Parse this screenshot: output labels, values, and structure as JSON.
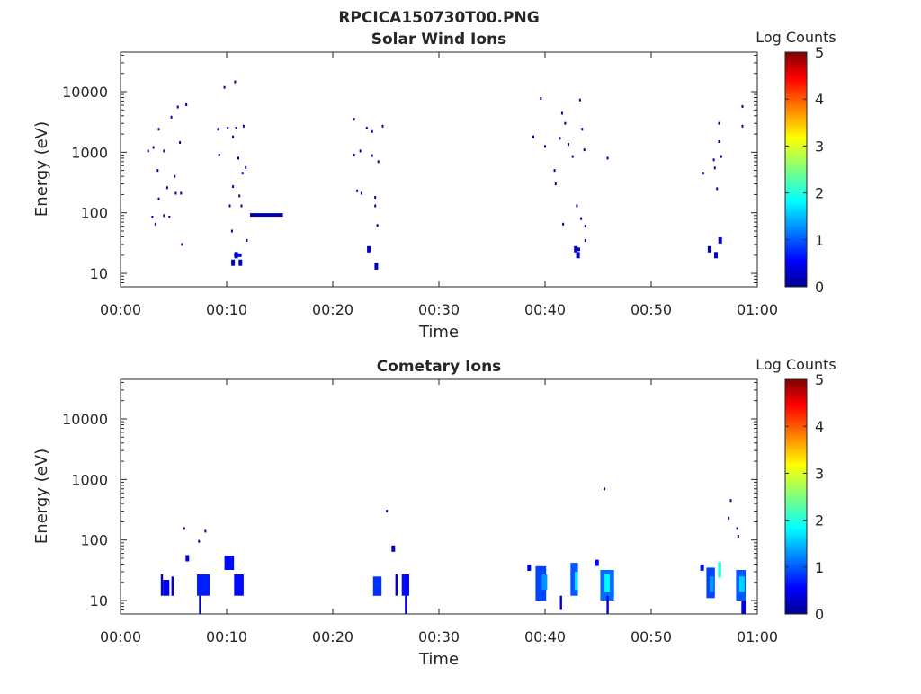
{
  "figure_title": "RPCICA150730T00.PNG",
  "colorbar": {
    "label": "Log Counts",
    "ticks": [
      0,
      1,
      2,
      3,
      4,
      5
    ],
    "range": [
      0,
      5
    ],
    "colormap": "jet"
  },
  "chart_data": [
    {
      "type": "heatmap",
      "title": "Solar Wind Ions",
      "xlabel": "Time",
      "ylabel": "Energy (eV)",
      "xlim_minutes": [
        0,
        60
      ],
      "x_ticks": [
        "00:00",
        "00:10",
        "00:20",
        "00:30",
        "00:40",
        "00:50",
        "01:00"
      ],
      "y_scale": "log",
      "ylim": [
        6,
        45000
      ],
      "y_ticks": [
        "10",
        "100",
        "1000",
        "10000"
      ],
      "grid": false,
      "colorbar_label": "Log Counts",
      "points": [
        {
          "t": 2.6,
          "e": 1050,
          "v": 0.2
        },
        {
          "t": 3.0,
          "e": 85,
          "v": 0.2
        },
        {
          "t": 3.1,
          "e": 1200,
          "v": 0.2
        },
        {
          "t": 3.3,
          "e": 65,
          "v": 0.2
        },
        {
          "t": 3.5,
          "e": 500,
          "v": 0.2
        },
        {
          "t": 3.6,
          "e": 170,
          "v": 0.2
        },
        {
          "t": 3.6,
          "e": 2400,
          "v": 0.2
        },
        {
          "t": 4.1,
          "e": 1050,
          "v": 0.2
        },
        {
          "t": 4.1,
          "e": 90,
          "v": 0.2
        },
        {
          "t": 4.4,
          "e": 260,
          "v": 0.2
        },
        {
          "t": 4.6,
          "e": 85,
          "v": 0.2
        },
        {
          "t": 4.8,
          "e": 3800,
          "v": 0.2
        },
        {
          "t": 5.1,
          "e": 400,
          "v": 0.2
        },
        {
          "t": 5.2,
          "e": 210,
          "v": 0.2
        },
        {
          "t": 5.4,
          "e": 5600,
          "v": 0.2
        },
        {
          "t": 5.6,
          "e": 1450,
          "v": 0.2
        },
        {
          "t": 5.7,
          "e": 210,
          "v": 0.2
        },
        {
          "t": 5.8,
          "e": 30,
          "v": 0.2
        },
        {
          "t": 6.2,
          "e": 6100,
          "v": 0.2
        },
        {
          "t": 9.2,
          "e": 2400,
          "v": 0.2
        },
        {
          "t": 9.3,
          "e": 900,
          "v": 0.2
        },
        {
          "t": 9.8,
          "e": 11800,
          "v": 0.2
        },
        {
          "t": 10.1,
          "e": 2500,
          "v": 0.2
        },
        {
          "t": 10.3,
          "e": 130,
          "v": 0.2
        },
        {
          "t": 10.5,
          "e": 50,
          "v": 0.2
        },
        {
          "t": 10.6,
          "e": 1800,
          "v": 0.2
        },
        {
          "t": 10.6,
          "e": 270,
          "v": 0.2
        },
        {
          "t": 10.6,
          "e": 15,
          "v": 0.3
        },
        {
          "t": 10.8,
          "e": 14500,
          "v": 0.2
        },
        {
          "t": 10.9,
          "e": 2500,
          "v": 0.2
        },
        {
          "t": 10.9,
          "e": 20,
          "v": 0.3
        },
        {
          "t": 11.1,
          "e": 800,
          "v": 0.2
        },
        {
          "t": 11.2,
          "e": 190,
          "v": 0.2
        },
        {
          "t": 11.3,
          "e": 15,
          "v": 0.3
        },
        {
          "t": 11.4,
          "e": 130,
          "v": 0.2
        },
        {
          "t": 11.5,
          "e": 450,
          "v": 0.2
        },
        {
          "t": 11.6,
          "e": 2700,
          "v": 0.2
        },
        {
          "t": 11.8,
          "e": 560,
          "v": 0.2
        },
        {
          "t": 11.9,
          "e": 35,
          "v": 0.2
        },
        {
          "t": 22.0,
          "e": 3500,
          "v": 0.2
        },
        {
          "t": 22.0,
          "e": 900,
          "v": 0.2
        },
        {
          "t": 22.3,
          "e": 230,
          "v": 0.2
        },
        {
          "t": 22.6,
          "e": 1050,
          "v": 0.2
        },
        {
          "t": 22.7,
          "e": 210,
          "v": 0.2
        },
        {
          "t": 23.2,
          "e": 2500,
          "v": 0.2
        },
        {
          "t": 23.4,
          "e": 25,
          "v": 0.3
        },
        {
          "t": 23.7,
          "e": 880,
          "v": 0.2
        },
        {
          "t": 23.7,
          "e": 2200,
          "v": 0.2
        },
        {
          "t": 24.0,
          "e": 180,
          "v": 0.2
        },
        {
          "t": 24.0,
          "e": 130,
          "v": 0.2
        },
        {
          "t": 24.1,
          "e": 13,
          "v": 0.3
        },
        {
          "t": 24.2,
          "e": 62,
          "v": 0.2
        },
        {
          "t": 24.3,
          "e": 700,
          "v": 0.2
        },
        {
          "t": 24.7,
          "e": 2700,
          "v": 0.2
        },
        {
          "t": 38.9,
          "e": 1800,
          "v": 0.2
        },
        {
          "t": 39.6,
          "e": 7700,
          "v": 0.2
        },
        {
          "t": 40.0,
          "e": 1250,
          "v": 0.2
        },
        {
          "t": 40.9,
          "e": 500,
          "v": 0.2
        },
        {
          "t": 41.0,
          "e": 300,
          "v": 0.2
        },
        {
          "t": 41.4,
          "e": 1700,
          "v": 0.2
        },
        {
          "t": 41.6,
          "e": 4400,
          "v": 0.2
        },
        {
          "t": 41.7,
          "e": 65,
          "v": 0.2
        },
        {
          "t": 41.9,
          "e": 3000,
          "v": 0.2
        },
        {
          "t": 42.2,
          "e": 1350,
          "v": 0.2
        },
        {
          "t": 42.6,
          "e": 850,
          "v": 0.2
        },
        {
          "t": 42.9,
          "e": 25,
          "v": 0.3
        },
        {
          "t": 43.0,
          "e": 130,
          "v": 0.2
        },
        {
          "t": 43.1,
          "e": 20,
          "v": 0.3
        },
        {
          "t": 43.3,
          "e": 7300,
          "v": 0.2
        },
        {
          "t": 43.4,
          "e": 80,
          "v": 0.2
        },
        {
          "t": 43.5,
          "e": 2400,
          "v": 0.2
        },
        {
          "t": 43.7,
          "e": 1100,
          "v": 0.2
        },
        {
          "t": 43.8,
          "e": 60,
          "v": 0.2
        },
        {
          "t": 43.8,
          "e": 35,
          "v": 0.2
        },
        {
          "t": 45.9,
          "e": 800,
          "v": 0.2
        },
        {
          "t": 54.9,
          "e": 450,
          "v": 0.2
        },
        {
          "t": 55.5,
          "e": 25,
          "v": 0.3
        },
        {
          "t": 55.9,
          "e": 750,
          "v": 0.2
        },
        {
          "t": 56.0,
          "e": 550,
          "v": 0.2
        },
        {
          "t": 56.1,
          "e": 20,
          "v": 0.3
        },
        {
          "t": 56.2,
          "e": 250,
          "v": 0.2
        },
        {
          "t": 56.4,
          "e": 3000,
          "v": 0.2
        },
        {
          "t": 56.4,
          "e": 1500,
          "v": 0.2
        },
        {
          "t": 56.5,
          "e": 35,
          "v": 0.3
        },
        {
          "t": 56.6,
          "e": 850,
          "v": 0.2
        },
        {
          "t": 58.6,
          "e": 5700,
          "v": 0.2
        },
        {
          "t": 58.6,
          "e": 2700,
          "v": 0.2
        }
      ],
      "streaks": [
        {
          "t0": 12.2,
          "t1": 15.3,
          "e": 92,
          "v": 0.2
        },
        {
          "t0": 10.7,
          "t1": 11.4,
          "e": 20,
          "v": 0.3
        },
        {
          "t0": 42.8,
          "t1": 43.3,
          "e": 25,
          "v": 0.3
        }
      ]
    },
    {
      "type": "heatmap",
      "title": "Cometary Ions",
      "xlabel": "Time",
      "ylabel": "Energy (eV)",
      "xlim_minutes": [
        0,
        60
      ],
      "x_ticks": [
        "00:00",
        "00:10",
        "00:20",
        "00:30",
        "00:40",
        "00:50",
        "01:00"
      ],
      "y_scale": "log",
      "ylim": [
        6,
        45000
      ],
      "y_ticks": [
        "10",
        "100",
        "1000",
        "10000"
      ],
      "grid": false,
      "colorbar_label": "Log Counts",
      "points": [
        {
          "t": 6.0,
          "e": 155,
          "v": 0.2
        },
        {
          "t": 6.3,
          "e": 50,
          "v": 0.4
        },
        {
          "t": 7.4,
          "e": 95,
          "v": 0.2
        },
        {
          "t": 8.0,
          "e": 140,
          "v": 0.2
        },
        {
          "t": 25.1,
          "e": 300,
          "v": 0.2
        },
        {
          "t": 25.7,
          "e": 72,
          "v": 0.3
        },
        {
          "t": 38.5,
          "e": 35,
          "v": 0.3
        },
        {
          "t": 44.9,
          "e": 42,
          "v": 0.6
        },
        {
          "t": 45.6,
          "e": 700,
          "v": 0.2
        },
        {
          "t": 54.8,
          "e": 35,
          "v": 0.4
        },
        {
          "t": 57.5,
          "e": 450,
          "v": 0.2
        },
        {
          "t": 57.3,
          "e": 230,
          "v": 0.2
        },
        {
          "t": 58.1,
          "e": 155,
          "v": 0.2
        },
        {
          "t": 58.2,
          "e": 115,
          "v": 0.2
        }
      ],
      "columns": [
        {
          "t0": 3.8,
          "t1": 4.0,
          "e0": 12,
          "e1": 27,
          "v": 0.3
        },
        {
          "t0": 4.0,
          "t1": 4.6,
          "e0": 12,
          "e1": 22,
          "v": 0.5
        },
        {
          "t0": 4.8,
          "t1": 5.0,
          "e0": 12,
          "e1": 25,
          "v": 0.3
        },
        {
          "t0": 7.2,
          "t1": 8.4,
          "e0": 12,
          "e1": 27,
          "v": 0.7
        },
        {
          "t0": 7.4,
          "t1": 7.6,
          "e0": 6,
          "e1": 12,
          "v": 0.3
        },
        {
          "t0": 9.8,
          "t1": 10.7,
          "e0": 32,
          "e1": 55,
          "v": 0.6
        },
        {
          "t0": 10.7,
          "t1": 11.6,
          "e0": 12,
          "e1": 27,
          "v": 0.6
        },
        {
          "t0": 23.8,
          "t1": 24.6,
          "e0": 12,
          "e1": 25,
          "v": 0.8
        },
        {
          "t0": 25.9,
          "t1": 26.1,
          "e0": 12,
          "e1": 27,
          "v": 0.3
        },
        {
          "t0": 26.5,
          "t1": 27.2,
          "e0": 12,
          "e1": 27,
          "v": 0.6
        },
        {
          "t0": 26.8,
          "t1": 27.0,
          "e0": 6,
          "e1": 12,
          "v": 0.3
        },
        {
          "t0": 39.1,
          "t1": 40.1,
          "e0": 10,
          "e1": 37,
          "v": 0.9
        },
        {
          "t0": 39.7,
          "t1": 40.2,
          "e0": 15,
          "e1": 27,
          "v": 1.3
        },
        {
          "t0": 41.4,
          "t1": 41.6,
          "e0": 7,
          "e1": 12,
          "v": 0.3
        },
        {
          "t0": 42.4,
          "t1": 43.1,
          "e0": 12,
          "e1": 42,
          "v": 1.0
        },
        {
          "t0": 42.8,
          "t1": 43.1,
          "e0": 15,
          "e1": 30,
          "v": 1.7
        },
        {
          "t0": 45.2,
          "t1": 46.5,
          "e0": 10,
          "e1": 32,
          "v": 1.1
        },
        {
          "t0": 45.6,
          "t1": 46.1,
          "e0": 14,
          "e1": 27,
          "v": 1.8
        },
        {
          "t0": 45.8,
          "t1": 46.0,
          "e0": 6,
          "e1": 12,
          "v": 0.3
        },
        {
          "t0": 55.2,
          "t1": 56.0,
          "e0": 11,
          "e1": 35,
          "v": 0.9
        },
        {
          "t0": 55.5,
          "t1": 55.9,
          "e0": 14,
          "e1": 25,
          "v": 1.3
        },
        {
          "t0": 56.3,
          "t1": 56.6,
          "e0": 24,
          "e1": 43,
          "v": 2.0
        },
        {
          "t0": 58.0,
          "t1": 58.9,
          "e0": 10,
          "e1": 32,
          "v": 1.0
        },
        {
          "t0": 58.3,
          "t1": 58.8,
          "e0": 14,
          "e1": 25,
          "v": 1.6
        },
        {
          "t0": 58.5,
          "t1": 58.9,
          "e0": 6,
          "e1": 10,
          "v": 0.4
        }
      ]
    }
  ]
}
